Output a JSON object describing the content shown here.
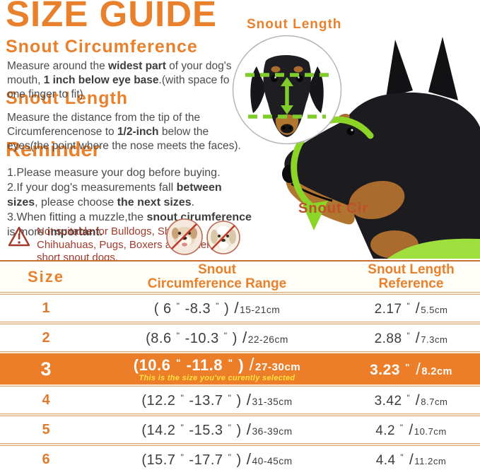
{
  "colors": {
    "accent_orange": "#E8802C",
    "highlight_orange": "#EC7E2A",
    "note_yellow": "#FFE23C",
    "warning_red": "#A23A2B",
    "snout_cir_label": "#C04F2B",
    "annotation_green": "#8CD428",
    "table_line_tan": "#D8A878",
    "body_text": "#4C4C4C"
  },
  "title": "SIZE GUIDE",
  "annotations": {
    "snout_length_label": "Snout Length",
    "snout_cir_label": "Snout Cir"
  },
  "sections": {
    "circumference": {
      "heading": "Snout Circumference",
      "lines": [
        [
          [
            "Measure around the ",
            0
          ],
          [
            "widest part",
            1
          ],
          [
            " of your dog's",
            0
          ]
        ],
        [
          [
            "mouth, ",
            0
          ],
          [
            "1 inch below eye base",
            1
          ],
          [
            ".(with space fo",
            0
          ]
        ],
        [
          [
            "one finger to fit)",
            0
          ]
        ]
      ]
    },
    "length": {
      "heading": "Snout Length",
      "lines": [
        [
          [
            "Measure the distance from the tip of the",
            0
          ]
        ],
        [
          [
            "Circumferencenose to ",
            0
          ],
          [
            "1/2-inch",
            1
          ],
          [
            " below the",
            0
          ]
        ],
        [
          [
            "eyes(the point where the nose meets the faces).",
            0
          ]
        ]
      ]
    },
    "reminder": {
      "heading": "Reminder",
      "lines": [
        [
          [
            "1.Please measure your dog before buying.",
            0
          ]
        ],
        [
          [
            "2.If your dog's measurements fall ",
            0
          ],
          [
            "between",
            1
          ]
        ],
        [
          [
            "sizes",
            1
          ],
          [
            ", please choose ",
            0
          ],
          [
            "the next sizes",
            1
          ],
          [
            ".",
            0
          ]
        ],
        [
          [
            "3.When fitting a muzzle,the ",
            0
          ],
          [
            "snout cirumference",
            1
          ]
        ],
        [
          [
            "is more ",
            0
          ],
          [
            "important.",
            1
          ]
        ]
      ]
    }
  },
  "warning": {
    "icon": "warning-triangle",
    "lines": [
      [
        [
          "Not suitable for Bulldogs, Shih Tzu,",
          0
        ]
      ],
      [
        [
          "Chihuahuas, Pugs, Boxers and other",
          0
        ]
      ],
      [
        [
          "short snout dogs.",
          0
        ]
      ]
    ]
  },
  "table": {
    "headers": {
      "size": "Size",
      "circumference": [
        "Snout",
        "Circumference Range"
      ],
      "length": [
        "Snout Length",
        "Reference"
      ]
    },
    "selected_note": "This is the size you've curently selected",
    "rows": [
      {
        "size": "1",
        "inches": "( 6 \" -8.3 \" )",
        "cm": "15-21cm",
        "len_in": "2.17 \"",
        "len_cm": "5.5cm",
        "selected": false
      },
      {
        "size": "2",
        "inches": "(8.6 \" -10.3 \" )",
        "cm": "22-26cm",
        "len_in": "2.88 \"",
        "len_cm": "7.3cm",
        "selected": false
      },
      {
        "size": "3",
        "inches": "(10.6 \" -11.8 \" )",
        "cm": "27-30cm",
        "len_in": "3.23 \"",
        "len_cm": "8.2cm",
        "selected": true
      },
      {
        "size": "4",
        "inches": "(12.2 \" -13.7 \" )",
        "cm": "31-35cm",
        "len_in": "3.42 \"",
        "len_cm": "8.7cm",
        "selected": false
      },
      {
        "size": "5",
        "inches": "(14.2 \" -15.3 \" )",
        "cm": "36-39cm",
        "len_in": "4.2 \"",
        "len_cm": "10.7cm",
        "selected": false
      },
      {
        "size": "6",
        "inches": "(15.7 \" -17.7 \" )",
        "cm": "40-45cm",
        "len_in": "4.4 \"",
        "len_cm": "11.2cm",
        "selected": false
      }
    ]
  }
}
